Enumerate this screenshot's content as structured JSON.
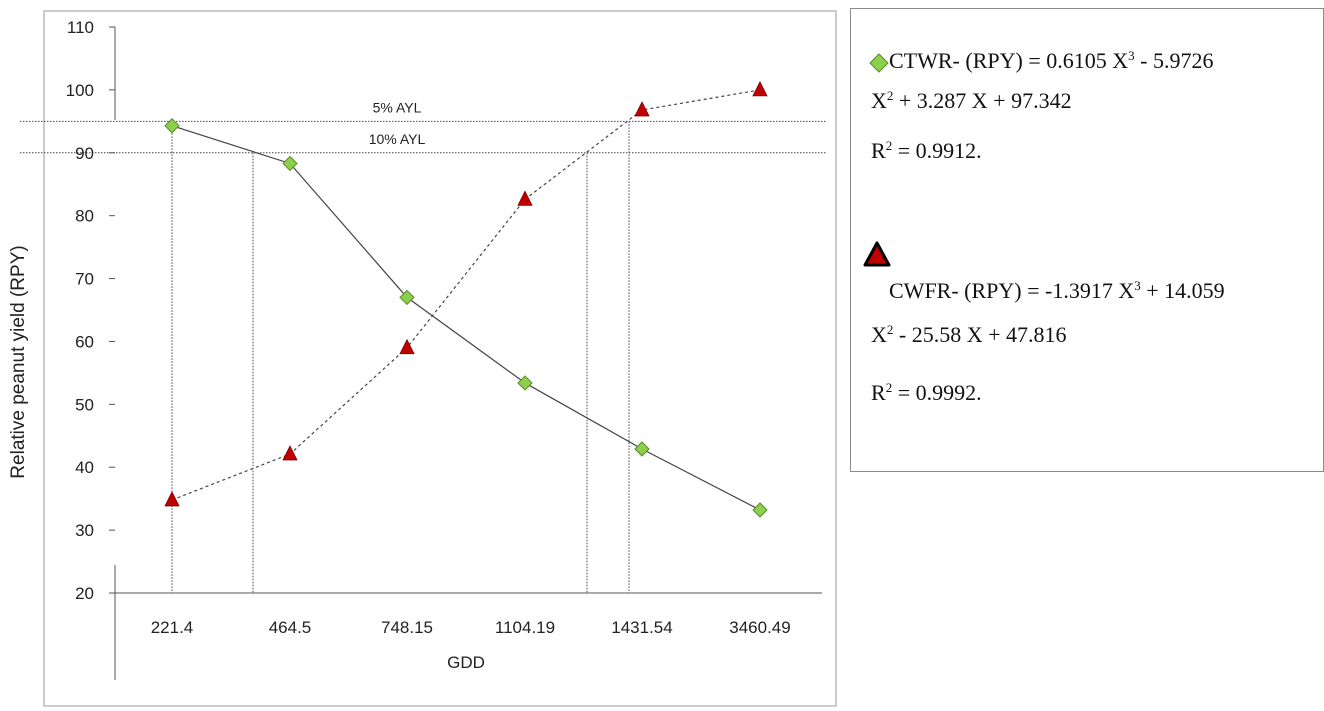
{
  "chart_data": {
    "type": "line",
    "xlabel": "GDD",
    "ylabel": "Relative peanut yield (RPY)",
    "categories": [
      "221.4",
      "464.5",
      "748.15",
      "1104.19",
      "1431.54",
      "3460.49"
    ],
    "ylim": [
      20,
      110
    ],
    "yticks": [
      20,
      30,
      40,
      50,
      60,
      70,
      80,
      90,
      100,
      110
    ],
    "series": [
      {
        "name": "CTWR",
        "marker": "diamond",
        "color": "#8ccf4d",
        "line": "solid",
        "values": [
          94.3,
          88.3,
          67.0,
          53.4,
          42.9,
          33.2
        ]
      },
      {
        "name": "CWFR",
        "marker": "triangle",
        "color": "#c00000",
        "line": "dashed",
        "values": [
          34.8,
          42.1,
          59.0,
          82.6,
          96.8,
          100.0
        ]
      }
    ],
    "reference_lines": [
      {
        "label": "5% AYL",
        "y": 95
      },
      {
        "label": "10% AYL",
        "y": 90
      }
    ],
    "grid": false,
    "legend": "right"
  },
  "legend": {
    "ctwr_line1_a": "CTWR- (RPY) = 0.6105 X",
    "ctwr_line1_b": " - 5.9726",
    "ctwr_line2_a": "X",
    "ctwr_line2_b": " + 3.287 X + 97.342",
    "ctwr_r2_a": "R",
    "ctwr_r2_b": " = 0.9912.",
    "cwfr_line1_a": "CWFR- (RPY) = -1.3917 X",
    "cwfr_line1_b": " + 14.059",
    "cwfr_line2_a": "X",
    "cwfr_line2_b": " - 25.58 X + 47.816",
    "cwfr_r2_a": "R",
    "cwfr_r2_b": " = 0.9992.",
    "sup_cube": "3",
    "sup_square": "2"
  }
}
